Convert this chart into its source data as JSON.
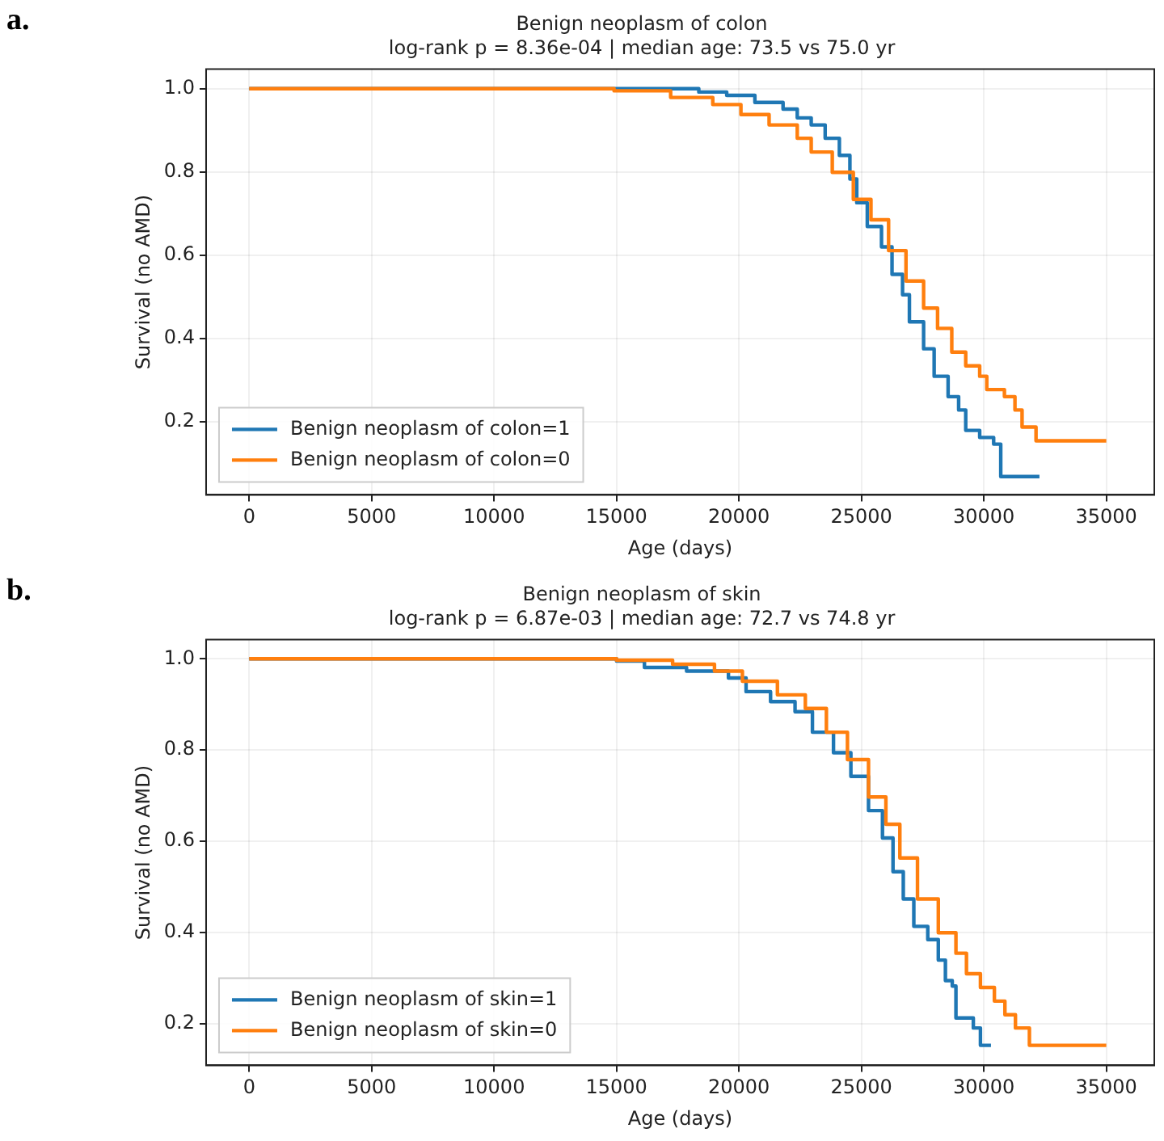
{
  "chart_data": [
    {
      "type": "step",
      "title": "Benign neoplasm of colon",
      "subtitle": "log-rank p = 8.36e-04 | median age: 73.5 vs 75.0 yr",
      "xlabel": "Age (days)",
      "ylabel": "Survival (no AMD)",
      "annotations": [
        "a."
      ],
      "xlim": [
        -1760,
        36960
      ],
      "ylim": [
        0.024,
        1.047
      ],
      "xticks": [
        0,
        5000,
        10000,
        15000,
        20000,
        25000,
        30000,
        35000
      ],
      "yticks": [
        0.2,
        0.4,
        0.6,
        0.8,
        {
          "value": 1.0,
          "label": "1.0"
        }
      ],
      "grid": true,
      "legend": "bottom left",
      "line_style": "solid",
      "marker": "none",
      "series": [
        {
          "name": "Benign neoplasm of colon=1",
          "color": "#1f77b4",
          "x": [
            0,
            16900,
            18360,
            19500,
            20650,
            21800,
            22380,
            22950,
            23520,
            24100,
            24530,
            24810,
            25240,
            25820,
            26250,
            26680,
            26960,
            27540,
            27970,
            28540,
            28970,
            29260,
            29830,
            30400,
            30690,
            32270
          ],
          "values": [
            1.0,
            1.0,
            0.992,
            0.984,
            0.967,
            0.951,
            0.93,
            0.913,
            0.881,
            0.84,
            0.783,
            0.726,
            0.669,
            0.62,
            0.554,
            0.505,
            0.44,
            0.375,
            0.309,
            0.26,
            0.228,
            0.179,
            0.162,
            0.146,
            0.068,
            0.068
          ]
        },
        {
          "name": "Benign neoplasm of colon=0",
          "color": "#ff7f0e",
          "x": [
            0,
            14900,
            17210,
            18930,
            20080,
            21230,
            22380,
            22950,
            23810,
            24670,
            25390,
            26110,
            26820,
            27540,
            28110,
            28690,
            29260,
            29830,
            30120,
            30840,
            31270,
            31560,
            32130,
            35000
          ],
          "values": [
            1.0,
            0.995,
            0.979,
            0.962,
            0.938,
            0.913,
            0.881,
            0.848,
            0.799,
            0.734,
            0.685,
            0.611,
            0.538,
            0.473,
            0.424,
            0.367,
            0.334,
            0.309,
            0.277,
            0.26,
            0.228,
            0.187,
            0.154,
            0.154
          ]
        }
      ]
    },
    {
      "type": "step",
      "title": "Benign neoplasm of skin",
      "subtitle": "log-rank p = 6.87e-03 | median age: 72.7 vs 74.8 yr",
      "xlabel": "Age (days)",
      "ylabel": "Survival (no AMD)",
      "annotations": [
        "b."
      ],
      "xlim": [
        -1760,
        36960
      ],
      "ylim": [
        0.108,
        1.042
      ],
      "xticks": [
        0,
        5000,
        10000,
        15000,
        20000,
        25000,
        30000,
        35000
      ],
      "yticks": [
        0.2,
        0.4,
        0.6,
        0.8,
        {
          "value": 1.0,
          "label": "1.0"
        }
      ],
      "grid": true,
      "legend": "bottom left",
      "line_style": "solid",
      "marker": "none",
      "series": [
        {
          "name": "Benign neoplasm of skin=1",
          "color": "#1f77b4",
          "x": [
            0,
            12510,
            15000,
            16140,
            17860,
            19570,
            20290,
            21290,
            22290,
            23000,
            23860,
            24570,
            25290,
            25860,
            26290,
            26710,
            27140,
            27710,
            28140,
            28430,
            28710,
            28860,
            29290,
            29570,
            29860,
            30290
          ],
          "values": [
            1.0,
            1.0,
            0.995,
            0.981,
            0.973,
            0.958,
            0.928,
            0.906,
            0.884,
            0.839,
            0.794,
            0.742,
            0.667,
            0.607,
            0.533,
            0.473,
            0.413,
            0.384,
            0.339,
            0.294,
            0.282,
            0.212,
            0.212,
            0.19,
            0.152,
            0.152
          ]
        },
        {
          "name": "Benign neoplasm of skin=0",
          "color": "#ff7f0e",
          "x": [
            0,
            15000,
            17290,
            19000,
            20140,
            21570,
            22710,
            23570,
            24430,
            25290,
            26000,
            26570,
            27290,
            28140,
            28860,
            29290,
            29860,
            30430,
            30860,
            31290,
            31860,
            35000
          ],
          "values": [
            1.0,
            0.997,
            0.988,
            0.973,
            0.951,
            0.921,
            0.891,
            0.839,
            0.779,
            0.697,
            0.637,
            0.563,
            0.473,
            0.399,
            0.354,
            0.309,
            0.279,
            0.249,
            0.219,
            0.19,
            0.152,
            0.152
          ]
        }
      ]
    }
  ]
}
